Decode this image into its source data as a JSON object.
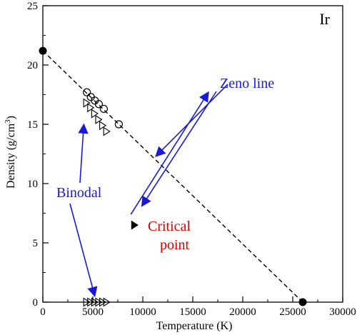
{
  "chart_data": {
    "type": "scatter",
    "title": "",
    "panel_label": "Ir",
    "xlabel": "Temperature (K)",
    "ylabel_main": "Density (g/cm",
    "ylabel_sup": "3",
    "ylabel_close": ")",
    "xlim": [
      0,
      30000
    ],
    "ylim": [
      0,
      25
    ],
    "xticks": [
      0,
      5000,
      10000,
      15000,
      20000,
      25000,
      30000
    ],
    "yticks": [
      0,
      5,
      10,
      15,
      20,
      25
    ],
    "grid": false,
    "zeno_line": {
      "label": "Zeno line",
      "endpoints": [
        [
          0,
          21.2
        ],
        [
          26000,
          0
        ]
      ],
      "color": "#000000"
    },
    "series": [
      {
        "marker": "circle-open",
        "points": [
          [
            4400,
            17.7
          ],
          [
            4800,
            17.3
          ],
          [
            5200,
            17.0
          ],
          [
            5600,
            16.7
          ],
          [
            6100,
            16.3
          ],
          [
            7600,
            15.0
          ]
        ]
      },
      {
        "marker": "triangle-right-open",
        "points": [
          [
            4300,
            16.8
          ],
          [
            4700,
            16.4
          ],
          [
            5100,
            15.9
          ],
          [
            5500,
            15.4
          ],
          [
            5900,
            14.9
          ],
          [
            6300,
            14.4
          ]
        ]
      },
      {
        "marker": "triangle-right-open",
        "points": [
          [
            4300,
            0
          ],
          [
            4700,
            0
          ],
          [
            5100,
            0
          ],
          [
            5500,
            0
          ],
          [
            5900,
            0
          ],
          [
            6300,
            0
          ]
        ]
      },
      {
        "marker": "triangle-right-filled",
        "points": [
          [
            9100,
            6.5
          ]
        ]
      },
      {
        "marker": "circle-filled",
        "points": [
          [
            0,
            21.2
          ],
          [
            26000,
            0
          ]
        ]
      }
    ],
    "annotations": {
      "binodal": {
        "text": "Binodal",
        "color": "#1a1ad6"
      },
      "critical_point": {
        "line1": "Critical",
        "line2": "point",
        "color": "#e00000"
      }
    },
    "colors": {
      "arrow": "#1a1ad6",
      "axes": "#000000"
    }
  }
}
